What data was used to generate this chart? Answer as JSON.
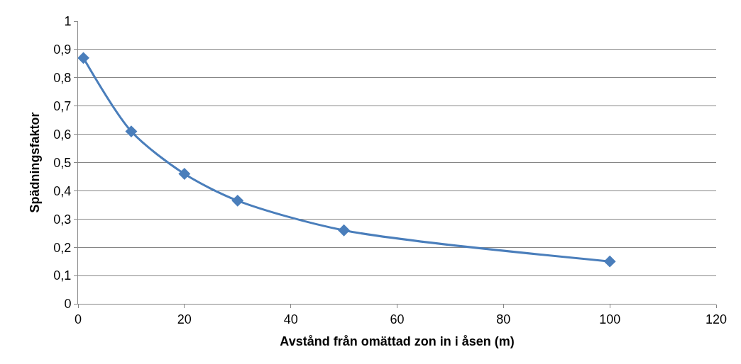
{
  "chart_data": {
    "type": "line",
    "xlabel": "Avstånd från omättad zon in i åsen (m)",
    "ylabel": "Spädningsfaktor",
    "x": [
      1,
      10,
      20,
      30,
      50,
      100
    ],
    "series": [
      {
        "color": "#4a7ebb",
        "values": [
          0.87,
          0.61,
          0.46,
          0.365,
          0.26,
          0.15
        ]
      }
    ],
    "xlim": [
      0,
      120
    ],
    "xticks": [
      0,
      20,
      40,
      60,
      80,
      100,
      120
    ],
    "ylim": [
      0,
      1
    ],
    "yticks": [
      0,
      {
        "value": 0.1,
        "label": "0,1"
      },
      {
        "value": 0.2,
        "label": "0,2"
      },
      {
        "value": 0.3,
        "label": "0,3"
      },
      {
        "value": 0.4,
        "label": "0,4"
      },
      {
        "value": 0.5,
        "label": "0,5"
      },
      {
        "value": 0.6,
        "label": "0,6"
      },
      {
        "value": 0.7,
        "label": "0,7"
      },
      {
        "value": 0.8,
        "label": "0,8"
      },
      {
        "value": 0.9,
        "label": "0,9"
      },
      1
    ],
    "grid": "y",
    "marker": "diamond",
    "line_style": "solid"
  }
}
